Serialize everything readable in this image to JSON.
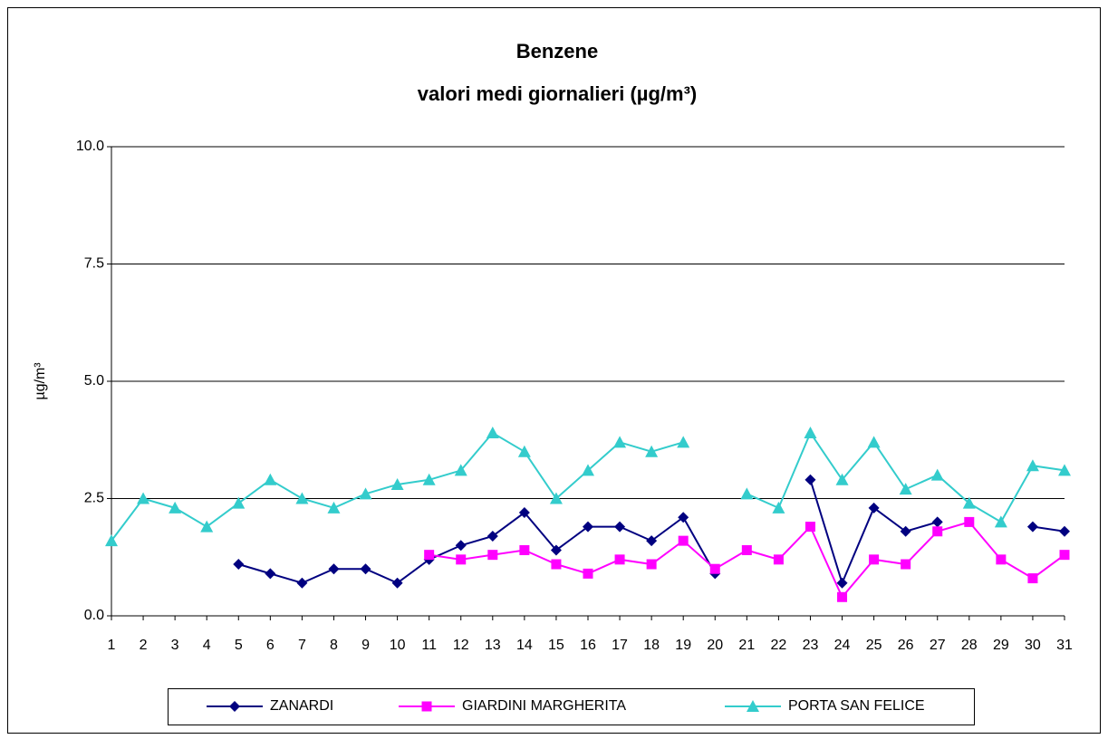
{
  "chart_data": {
    "type": "line",
    "title": "Benzene",
    "subtitle": "valori medi giornalieri (µg/m³)",
    "y_label": "µg/m³",
    "x": [
      1,
      2,
      3,
      4,
      5,
      6,
      7,
      8,
      9,
      10,
      11,
      12,
      13,
      14,
      15,
      16,
      17,
      18,
      19,
      20,
      21,
      22,
      23,
      24,
      25,
      26,
      27,
      28,
      29,
      30,
      31
    ],
    "xlim": [
      1,
      31
    ],
    "ylim": [
      0,
      10
    ],
    "yticks": [
      {
        "value": 0,
        "label": "0.0"
      },
      2.5,
      {
        "value": 5,
        "label": "5.0"
      },
      7.5,
      {
        "value": 10,
        "label": "10.0"
      }
    ],
    "grid": true,
    "legend": "bottom",
    "series": [
      {
        "name": "ZANARDI",
        "color": "#000080",
        "marker": "diamond",
        "values": [
          null,
          null,
          null,
          null,
          1.1,
          0.9,
          0.7,
          1.0,
          1.0,
          0.7,
          1.2,
          1.5,
          1.7,
          2.2,
          1.4,
          1.9,
          1.9,
          1.6,
          2.1,
          0.9,
          null,
          null,
          2.9,
          0.7,
          2.3,
          1.8,
          2.0,
          null,
          null,
          1.9,
          1.8
        ]
      },
      {
        "name": "GIARDINI MARGHERITA",
        "color": "#ff00ff",
        "marker": "square",
        "values": [
          null,
          null,
          null,
          null,
          null,
          null,
          null,
          null,
          null,
          null,
          1.3,
          1.2,
          1.3,
          1.4,
          1.1,
          0.9,
          1.2,
          1.1,
          1.6,
          1.0,
          1.4,
          1.2,
          1.9,
          0.4,
          1.2,
          1.1,
          1.8,
          2.0,
          1.2,
          0.8,
          1.3
        ]
      },
      {
        "name": "PORTA SAN FELICE",
        "color": "#33cccc",
        "marker": "triangle",
        "values": [
          1.6,
          2.5,
          2.3,
          1.9,
          2.4,
          2.9,
          2.5,
          2.3,
          2.6,
          2.8,
          2.9,
          3.1,
          3.9,
          3.5,
          2.5,
          3.1,
          3.7,
          3.5,
          3.7,
          null,
          2.6,
          2.3,
          3.9,
          2.9,
          3.7,
          2.7,
          3.0,
          2.4,
          2.0,
          3.2,
          3.1
        ]
      }
    ]
  }
}
